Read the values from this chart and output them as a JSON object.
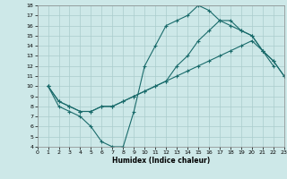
{
  "xlabel": "Humidex (Indice chaleur)",
  "bg_color": "#cde8e8",
  "grid_color": "#aacccc",
  "line_color": "#1a6b6b",
  "xlim": [
    0,
    23
  ],
  "ylim": [
    4,
    18
  ],
  "xticks": [
    0,
    1,
    2,
    3,
    4,
    5,
    6,
    7,
    8,
    9,
    10,
    11,
    12,
    13,
    14,
    15,
    16,
    17,
    18,
    19,
    20,
    21,
    22,
    23
  ],
  "yticks": [
    4,
    5,
    6,
    7,
    8,
    9,
    10,
    11,
    12,
    13,
    14,
    15,
    16,
    17,
    18
  ],
  "line1_x": [
    1,
    2,
    3,
    4,
    5,
    6,
    7,
    8,
    9,
    10,
    11,
    12,
    13,
    14,
    15,
    16,
    17,
    18,
    19,
    20,
    21,
    22
  ],
  "line1_y": [
    10,
    8,
    7.5,
    7,
    6,
    4.5,
    4,
    4,
    7.5,
    12,
    14,
    16,
    16.5,
    17,
    18,
    17.5,
    16.5,
    16.5,
    15.5,
    15,
    13.5,
    12
  ],
  "line2_x": [
    1,
    2,
    3,
    4,
    5,
    6,
    7,
    8,
    9,
    10,
    11,
    12,
    13,
    14,
    15,
    16,
    17,
    18,
    19,
    20,
    21,
    22,
    23
  ],
  "line2_y": [
    10,
    8.5,
    8,
    7.5,
    7.5,
    8,
    8,
    8.5,
    9,
    9.5,
    10,
    10.5,
    11,
    11.5,
    12,
    12.5,
    13,
    13.5,
    14,
    14.5,
    13.5,
    12.5,
    11
  ],
  "line3_x": [
    1,
    2,
    3,
    4,
    5,
    6,
    7,
    8,
    9,
    10,
    11,
    12,
    13,
    14,
    15,
    16,
    17,
    18,
    19,
    20,
    21,
    22,
    23
  ],
  "line3_y": [
    10,
    8.5,
    8,
    7.5,
    7.5,
    8,
    8,
    8.5,
    9,
    9.5,
    10,
    10.5,
    12,
    13,
    14.5,
    15.5,
    16.5,
    16,
    15.5,
    15,
    13.5,
    12.5,
    11
  ]
}
